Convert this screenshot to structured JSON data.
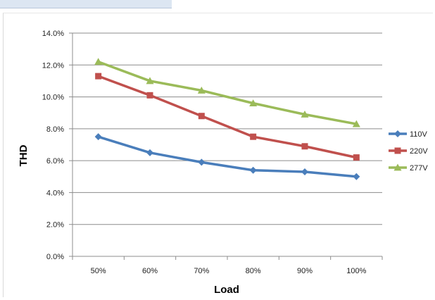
{
  "chart_data": {
    "type": "line",
    "title": "",
    "xlabel": "Load",
    "ylabel": "THD",
    "categories": [
      "50%",
      "60%",
      "70%",
      "80%",
      "90%",
      "100%"
    ],
    "y_ticks": [
      "0.0%",
      "2.0%",
      "4.0%",
      "6.0%",
      "8.0%",
      "10.0%",
      "12.0%",
      "14.0%"
    ],
    "ylim": [
      0,
      14
    ],
    "grid": "horizontal",
    "legend_position": "right",
    "series": [
      {
        "name": "110V",
        "color": "#4a7ebb",
        "marker": "diamond",
        "values": [
          7.5,
          6.5,
          5.9,
          5.4,
          5.3,
          5.0
        ]
      },
      {
        "name": "220V",
        "color": "#c0504d",
        "marker": "square",
        "values": [
          11.3,
          10.1,
          8.8,
          7.5,
          6.9,
          6.2
        ]
      },
      {
        "name": "277V",
        "color": "#9bbb59",
        "marker": "triangle",
        "values": [
          12.2,
          11.0,
          10.4,
          9.6,
          8.9,
          8.3
        ]
      }
    ]
  }
}
